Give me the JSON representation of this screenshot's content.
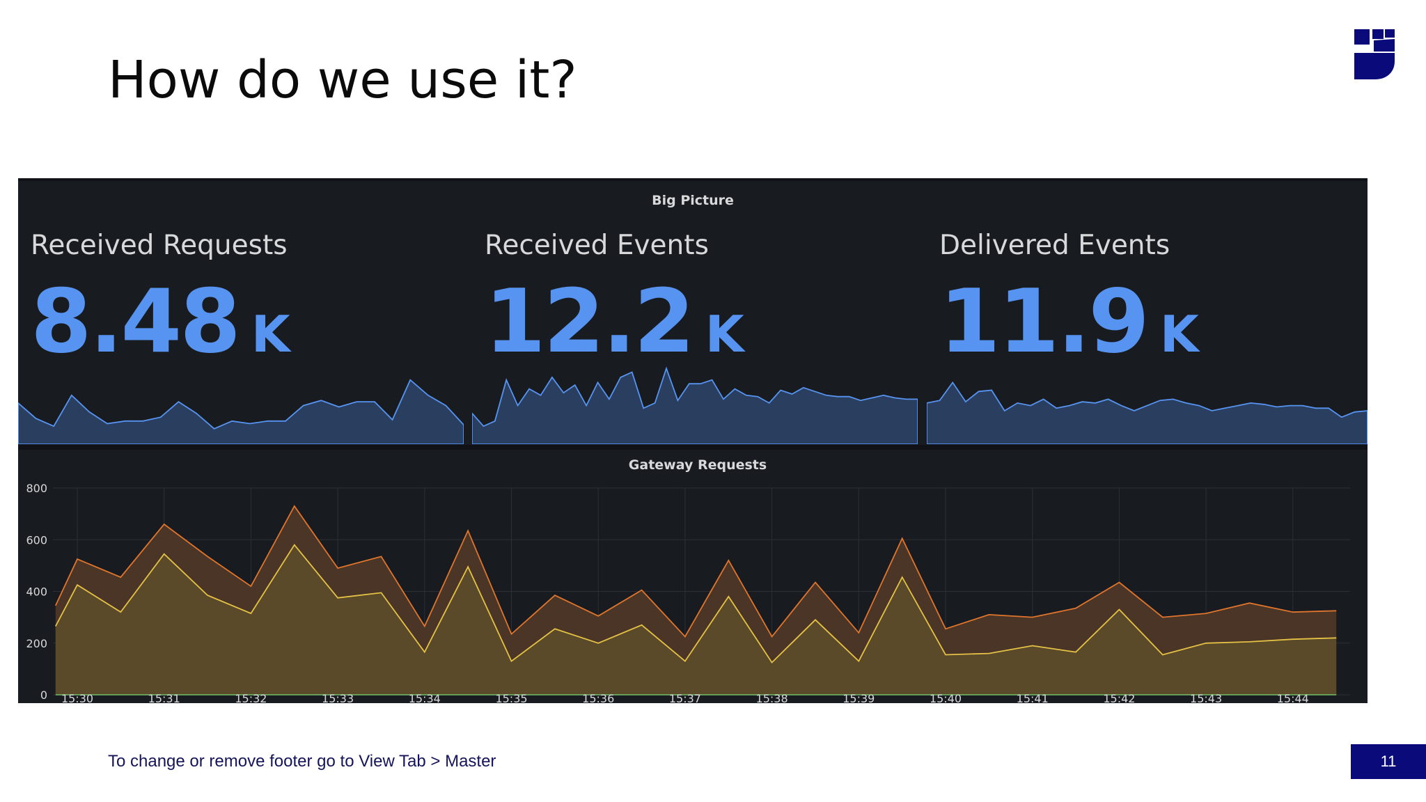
{
  "slide": {
    "title": "How do we use it?",
    "footer": "To change or remove footer go to View Tab > Master",
    "page_number": "11"
  },
  "colors": {
    "stat_blue": "#5794f2",
    "sparkline_fill": "#2a3f5f",
    "series_outer": "#e0752d",
    "series_inner": "#e5c245",
    "baseline": "#73bf69",
    "panel_bg": "#181b1f",
    "brand_navy": "#0a0a7a"
  },
  "dashboard": {
    "big_picture": {
      "title": "Big Picture",
      "stats": [
        {
          "label": "Received Requests",
          "value": "8.48",
          "unit": "K",
          "sparkline": [
            320,
            200,
            140,
            380,
            250,
            160,
            180,
            180,
            210,
            330,
            240,
            120,
            180,
            160,
            180,
            180,
            300,
            340,
            290,
            330,
            330,
            190,
            500,
            380,
            300,
            150
          ]
        },
        {
          "label": "Received Events",
          "value": "12.2",
          "unit": "K",
          "sparkline": [
            240,
            140,
            180,
            500,
            300,
            430,
            380,
            520,
            400,
            460,
            300,
            480,
            350,
            520,
            560,
            280,
            320,
            590,
            340,
            470,
            470,
            500,
            350,
            430,
            380,
            370,
            320,
            420,
            390,
            440,
            410,
            380,
            370,
            370,
            340,
            360,
            380,
            360,
            350,
            350
          ]
        },
        {
          "label": "Delivered Events",
          "value": "11.9",
          "unit": "K",
          "sparkline": [
            320,
            340,
            480,
            330,
            410,
            420,
            260,
            320,
            300,
            350,
            280,
            300,
            330,
            320,
            350,
            300,
            260,
            300,
            340,
            350,
            320,
            300,
            260,
            280,
            300,
            320,
            310,
            290,
            300,
            300,
            280,
            280,
            210,
            250,
            260
          ]
        }
      ]
    },
    "gateway_requests": {
      "title": "Gateway Requests",
      "y_ticks": [
        "800",
        "600",
        "400",
        "200",
        "0"
      ],
      "x_ticks": [
        "15:30",
        "15:31",
        "15:32",
        "15:33",
        "15:34",
        "15:35",
        "15:36",
        "15:37",
        "15:38",
        "15:39",
        "15:40",
        "15:41",
        "15:42",
        "15:43",
        "15:44"
      ]
    }
  },
  "chart_data": {
    "type": "area",
    "title": "Gateway Requests",
    "xlabel": "",
    "ylabel": "",
    "ylim": [
      0,
      800
    ],
    "x": [
      "15:29.75",
      "15:30",
      "15:30.5",
      "15:31",
      "15:31.5",
      "15:32",
      "15:32.5",
      "15:33",
      "15:33.5",
      "15:34",
      "15:34.5",
      "15:35",
      "15:35.5",
      "15:36",
      "15:36.5",
      "15:37",
      "15:37.5",
      "15:38",
      "15:38.5",
      "15:39",
      "15:39.5",
      "15:40",
      "15:40.5",
      "15:41",
      "15:41.5",
      "15:42",
      "15:42.5",
      "15:43",
      "15:43.5",
      "15:44",
      "15:44.5"
    ],
    "series": [
      {
        "values": [
          345,
          525,
          455,
          660,
          535,
          420,
          730,
          490,
          535,
          265,
          635,
          235,
          385,
          305,
          405,
          225,
          520,
          225,
          435,
          240,
          605,
          255,
          310,
          300,
          335,
          435,
          300,
          315,
          355,
          320,
          325
        ]
      },
      {
        "values": [
          265,
          425,
          320,
          545,
          385,
          315,
          580,
          375,
          395,
          165,
          495,
          130,
          255,
          200,
          270,
          130,
          380,
          125,
          290,
          130,
          455,
          155,
          160,
          190,
          165,
          330,
          155,
          200,
          205,
          215,
          220
        ]
      },
      {
        "values": [
          0,
          0,
          0,
          0,
          0,
          0,
          0,
          0,
          0,
          0,
          0,
          0,
          0,
          0,
          0,
          0,
          0,
          0,
          0,
          0,
          0,
          0,
          0,
          0,
          0,
          0,
          0,
          0,
          0,
          0,
          0
        ]
      }
    ],
    "grid": true
  }
}
